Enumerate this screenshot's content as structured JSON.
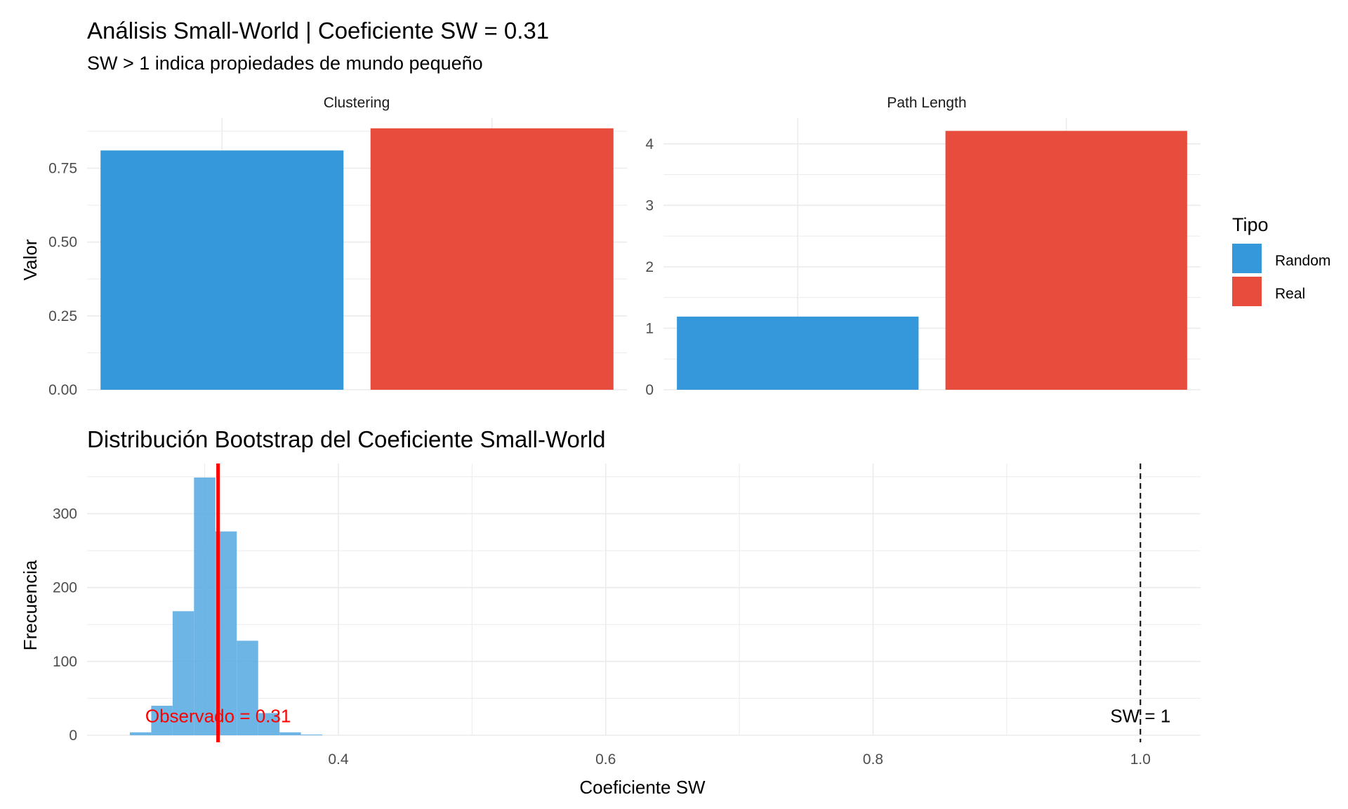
{
  "title": "Análisis Small-World | Coeficiente SW = 0.31",
  "subtitle": "SW > 1 indica propiedades de mundo pequeño",
  "colors": {
    "random": "#3498db",
    "real": "#e74c3c",
    "hist_fill": "#5dade2",
    "observed_line": "#ff0000",
    "reference_line": "#000000",
    "grid": "#ebebeb",
    "axis_text": "#4d4d4d"
  },
  "legend": {
    "title": "Tipo",
    "items": [
      {
        "label": "Random",
        "color": "#3498db"
      },
      {
        "label": "Real",
        "color": "#e74c3c"
      }
    ]
  },
  "chart_data": [
    {
      "type": "bar",
      "facet": "Clustering",
      "ylabel": "Valor",
      "categories": [
        "Random",
        "Real"
      ],
      "values": [
        0.81,
        0.885
      ],
      "ylim": [
        0,
        0.92
      ],
      "yticks": [
        0,
        0.25,
        0.5,
        0.75
      ],
      "ytick_labels": [
        "0.00",
        "0.25",
        "0.50",
        "0.75"
      ],
      "grid": true
    },
    {
      "type": "bar",
      "facet": "Path Length",
      "categories": [
        "Random",
        "Real"
      ],
      "values": [
        1.19,
        4.21
      ],
      "ylim": [
        0,
        4.42
      ],
      "yticks": [
        0,
        1,
        2,
        3,
        4
      ],
      "ytick_labels": [
        "0",
        "1",
        "2",
        "3",
        "4"
      ],
      "grid": true
    },
    {
      "type": "histogram",
      "title": "Distribución Bootstrap del Coeficiente Small-World",
      "xlabel": "Coeficiente SW",
      "ylabel": "Frecuencia",
      "bin_width": 0.016,
      "bins": [
        {
          "x0": 0.244,
          "x1": 0.26,
          "count": 4
        },
        {
          "x0": 0.26,
          "x1": 0.276,
          "count": 40
        },
        {
          "x0": 0.276,
          "x1": 0.292,
          "count": 168
        },
        {
          "x0": 0.292,
          "x1": 0.308,
          "count": 349
        },
        {
          "x0": 0.308,
          "x1": 0.324,
          "count": 276
        },
        {
          "x0": 0.324,
          "x1": 0.34,
          "count": 128
        },
        {
          "x0": 0.34,
          "x1": 0.356,
          "count": 30
        },
        {
          "x0": 0.356,
          "x1": 0.372,
          "count": 4
        },
        {
          "x0": 0.372,
          "x1": 0.388,
          "count": 1
        }
      ],
      "xlim": [
        0.212,
        1.045
      ],
      "ylim": [
        0,
        368
      ],
      "xticks": [
        0.4,
        0.6,
        0.8,
        1.0
      ],
      "xtick_labels": [
        "0.4",
        "0.6",
        "0.8",
        "1.0"
      ],
      "yticks": [
        0,
        100,
        200,
        300
      ],
      "ytick_labels": [
        "0",
        "100",
        "200",
        "300"
      ],
      "observed_value": 0.31,
      "observed_label": "Observado = 0.31",
      "reference_value": 1.0,
      "reference_label": "SW = 1",
      "grid": true
    }
  ]
}
